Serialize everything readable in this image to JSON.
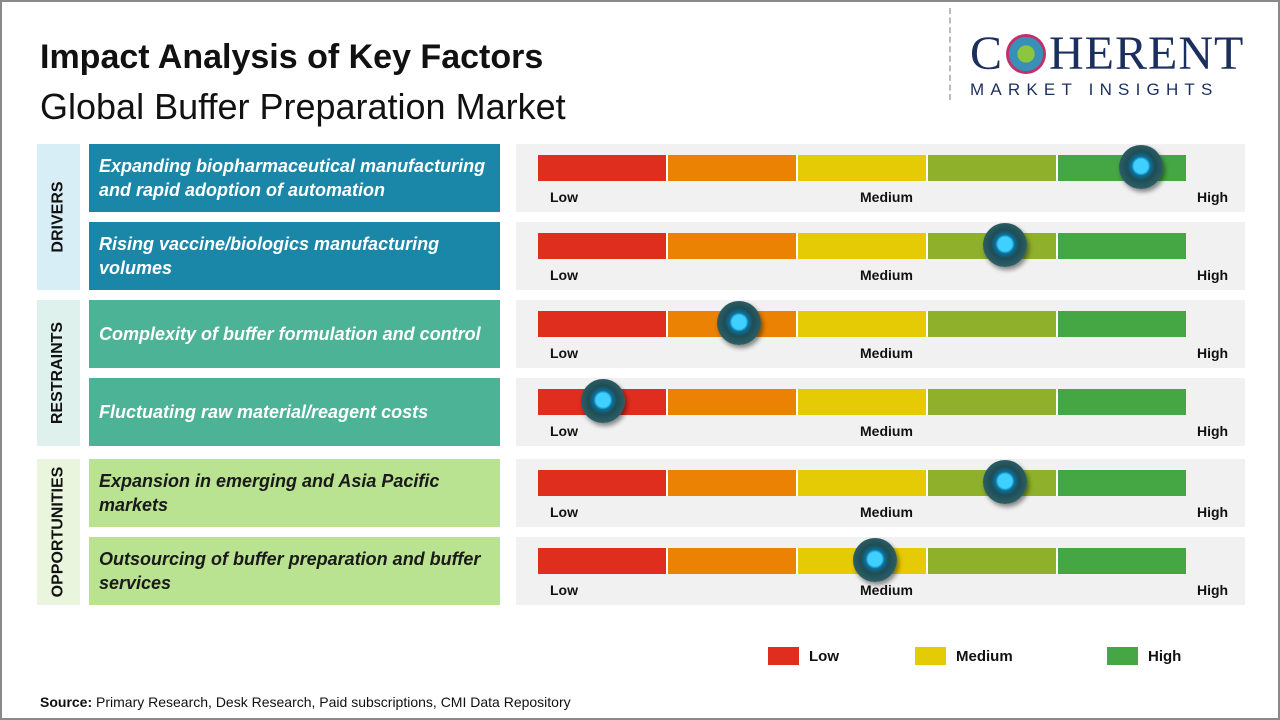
{
  "title": "Impact Analysis of Key Factors",
  "subtitle": "Global Buffer Preparation Market",
  "logo": {
    "main": "COHERENT",
    "sub": "MARKET INSIGHTS"
  },
  "scale": {
    "low": "Low",
    "medium": "Medium",
    "high": "High",
    "segment_colors": [
      "#df2e1d",
      "#ec8203",
      "#e5cb05",
      "#8fb02a",
      "#45a744"
    ]
  },
  "categories": [
    {
      "label": "DRIVERS",
      "color": "#1a87a9",
      "bg": "#d8eef7",
      "text_color": "#ffffff",
      "factors": [
        {
          "text": "Expanding biopharmaceutical manufacturing and rapid adoption of automation",
          "impact": 0.93
        },
        {
          "text": "Rising vaccine/biologics manufacturing volumes",
          "impact": 0.72
        }
      ]
    },
    {
      "label": "RESTRAINTS",
      "color": "#4db396",
      "bg": "#def1ec",
      "text_color": "#ffffff",
      "factors": [
        {
          "text": "Complexity of buffer formulation and control",
          "impact": 0.31
        },
        {
          "text": "Fluctuating raw material/reagent costs",
          "impact": 0.1
        }
      ]
    },
    {
      "label": "OPPORTUNITIES",
      "color": "#b9e291",
      "bg": "#e9f6dd",
      "text_color": "#1a1a1a",
      "factors": [
        {
          "text": "Expansion in emerging and Asia Pacific markets",
          "impact": 0.72
        },
        {
          "text": "Outsourcing of buffer preparation and buffer services",
          "impact": 0.52
        }
      ]
    }
  ],
  "legend": [
    {
      "label": "Low",
      "color": "#df2e1d"
    },
    {
      "label": "Medium",
      "color": "#e5cb05"
    },
    {
      "label": "High",
      "color": "#45a744"
    }
  ],
  "source": {
    "label": "Source:",
    "text": " Primary Research, Desk Research, Paid subscriptions, CMI Data Repository"
  }
}
